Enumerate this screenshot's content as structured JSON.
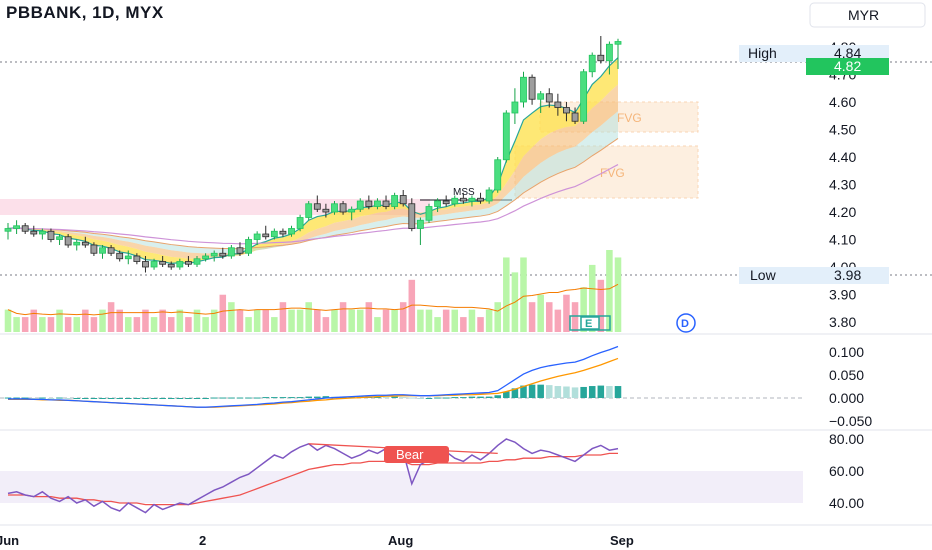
{
  "header": {
    "title": "PBBANK, 1D, MYX",
    "currency": "MYR"
  },
  "colors": {
    "up": "#26a69a",
    "upBright": "#22c55e",
    "down": "#ef5350",
    "black": "#2b2b2b",
    "rsi": "#7e57c2",
    "rsiSignal": "#ef5350",
    "macd": "#2962ff",
    "macdSignal": "#ff9800",
    "pricePill": "#22c55e"
  },
  "price_axis": {
    "labels": [
      "4.80",
      "4.70",
      "4.60",
      "4.50",
      "4.40",
      "4.30",
      "4.20",
      "4.10",
      "4.00",
      "3.90",
      "3.80"
    ],
    "high_label": "High",
    "high_value": "4.84",
    "current_value": "4.82",
    "low_label": "Low",
    "low_value": "3.98"
  },
  "macd_axis": {
    "labels": [
      "0.100",
      "0.050",
      "0.000",
      "−0.050"
    ]
  },
  "rsi_axis": {
    "labels": [
      "80.00",
      "60.00",
      "40.00"
    ]
  },
  "x_axis": {
    "labels": [
      "Jun",
      "2",
      "Aug",
      "Sep"
    ]
  },
  "annotations": {
    "mss": "MSS",
    "fvg1": "FVG",
    "fvg2": "FVG",
    "bear": "Bear",
    "event_e": "E",
    "event_d": "D"
  },
  "chart_data": [
    {
      "type": "candlestick",
      "title": "PBBANK, 1D, MYX",
      "ylim": [
        3.78,
        4.88
      ],
      "x_labels": [
        "Jun",
        "2",
        "Aug",
        "Sep"
      ],
      "ohlc": [
        [
          4.13,
          4.16,
          4.1,
          4.14
        ],
        [
          4.14,
          4.17,
          4.12,
          4.15
        ],
        [
          4.15,
          4.16,
          4.12,
          4.13
        ],
        [
          4.13,
          4.15,
          4.11,
          4.12
        ],
        [
          4.12,
          4.14,
          4.1,
          4.13
        ],
        [
          4.13,
          4.14,
          4.09,
          4.1
        ],
        [
          4.1,
          4.12,
          4.08,
          4.11
        ],
        [
          4.11,
          4.12,
          4.07,
          4.08
        ],
        [
          4.08,
          4.1,
          4.06,
          4.09
        ],
        [
          4.09,
          4.11,
          4.07,
          4.08
        ],
        [
          4.08,
          4.09,
          4.04,
          4.05
        ],
        [
          4.05,
          4.08,
          4.03,
          4.07
        ],
        [
          4.07,
          4.08,
          4.04,
          4.05
        ],
        [
          4.05,
          4.06,
          4.02,
          4.03
        ],
        [
          4.03,
          4.06,
          4.01,
          4.04
        ],
        [
          4.04,
          4.05,
          4.01,
          4.02
        ],
        [
          4.02,
          4.04,
          3.98,
          4.0
        ],
        [
          4.0,
          4.03,
          3.99,
          4.02
        ],
        [
          4.02,
          4.04,
          4.0,
          4.01
        ],
        [
          4.01,
          4.02,
          3.99,
          4.0
        ],
        [
          4.0,
          4.03,
          3.99,
          4.02
        ],
        [
          4.02,
          4.04,
          4.0,
          4.01
        ],
        [
          4.01,
          4.04,
          4.0,
          4.03
        ],
        [
          4.03,
          4.05,
          4.02,
          4.04
        ],
        [
          4.04,
          4.06,
          4.02,
          4.05
        ],
        [
          4.05,
          4.07,
          4.03,
          4.04
        ],
        [
          4.04,
          4.08,
          4.03,
          4.07
        ],
        [
          4.07,
          4.09,
          4.04,
          4.05
        ],
        [
          4.05,
          4.11,
          4.04,
          4.1
        ],
        [
          4.1,
          4.13,
          4.08,
          4.12
        ],
        [
          4.12,
          4.15,
          4.1,
          4.11
        ],
        [
          4.11,
          4.14,
          4.1,
          4.13
        ],
        [
          4.13,
          4.14,
          4.11,
          4.12
        ],
        [
          4.12,
          4.15,
          4.11,
          4.14
        ],
        [
          4.14,
          4.19,
          4.13,
          4.18
        ],
        [
          4.18,
          4.24,
          4.17,
          4.23
        ],
        [
          4.23,
          4.26,
          4.2,
          4.21
        ],
        [
          4.21,
          4.23,
          4.18,
          4.2
        ],
        [
          4.2,
          4.24,
          4.19,
          4.23
        ],
        [
          4.23,
          4.24,
          4.19,
          4.2
        ],
        [
          4.2,
          4.22,
          4.17,
          4.21
        ],
        [
          4.21,
          4.25,
          4.2,
          4.24
        ],
        [
          4.24,
          4.26,
          4.21,
          4.22
        ],
        [
          4.22,
          4.25,
          4.21,
          4.24
        ],
        [
          4.24,
          4.26,
          4.21,
          4.22
        ],
        [
          4.22,
          4.27,
          4.21,
          4.26
        ],
        [
          4.26,
          4.28,
          4.22,
          4.23
        ],
        [
          4.23,
          4.25,
          4.13,
          4.14
        ],
        [
          4.14,
          4.18,
          4.08,
          4.17
        ],
        [
          4.17,
          4.23,
          4.16,
          4.22
        ],
        [
          4.22,
          4.25,
          4.2,
          4.24
        ],
        [
          4.24,
          4.26,
          4.22,
          4.23
        ],
        [
          4.23,
          4.26,
          4.22,
          4.25
        ],
        [
          4.25,
          4.27,
          4.23,
          4.24
        ],
        [
          4.24,
          4.26,
          4.22,
          4.25
        ],
        [
          4.25,
          4.27,
          4.23,
          4.24
        ],
        [
          4.24,
          4.29,
          4.23,
          4.28
        ],
        [
          4.28,
          4.4,
          4.27,
          4.39
        ],
        [
          4.39,
          4.57,
          4.38,
          4.56
        ],
        [
          4.56,
          4.65,
          4.52,
          4.6
        ],
        [
          4.6,
          4.71,
          4.58,
          4.69
        ],
        [
          4.69,
          4.7,
          4.59,
          4.61
        ],
        [
          4.61,
          4.64,
          4.56,
          4.63
        ],
        [
          4.63,
          4.65,
          4.58,
          4.6
        ],
        [
          4.6,
          4.63,
          4.55,
          4.58
        ],
        [
          4.58,
          4.6,
          4.53,
          4.56
        ],
        [
          4.56,
          4.58,
          4.52,
          4.53
        ],
        [
          4.53,
          4.72,
          4.52,
          4.71
        ],
        [
          4.71,
          4.78,
          4.69,
          4.77
        ],
        [
          4.77,
          4.84,
          4.74,
          4.75
        ],
        [
          4.75,
          4.82,
          4.7,
          4.81
        ],
        [
          4.81,
          4.83,
          4.72,
          4.82
        ]
      ],
      "volume": [
        3,
        2,
        2,
        3,
        2,
        2,
        3,
        2,
        2,
        3,
        2,
        3,
        4,
        3,
        2,
        2,
        3,
        2,
        3,
        2,
        3,
        2,
        3,
        2,
        3,
        5,
        4,
        3,
        2,
        3,
        3,
        2,
        4,
        3,
        3,
        4,
        3,
        2,
        3,
        4,
        3,
        3,
        4,
        2,
        3,
        3,
        4,
        7,
        3,
        3,
        2,
        3,
        3,
        2,
        3,
        2,
        3,
        4,
        10,
        8,
        10,
        4,
        5,
        4,
        3,
        5,
        4,
        6,
        9,
        7,
        11,
        10
      ]
    },
    {
      "type": "line",
      "title": "",
      "ylim": [
        -0.055,
        0.12
      ],
      "series": [
        {
          "values": [
            -0.002,
            -0.002,
            -0.002,
            -0.003,
            -0.003,
            -0.004,
            -0.004,
            -0.005,
            -0.006,
            -0.007,
            -0.008,
            -0.009,
            -0.01,
            -0.011,
            -0.012,
            -0.013,
            -0.014,
            -0.015,
            -0.016,
            -0.017,
            -0.018,
            -0.019,
            -0.02,
            -0.02,
            -0.019,
            -0.018,
            -0.017,
            -0.016,
            -0.015,
            -0.014,
            -0.012,
            -0.011,
            -0.009,
            -0.008,
            -0.006,
            -0.004,
            -0.002,
            0.0,
            0.001,
            0.002,
            0.003,
            0.004,
            0.005,
            0.006,
            0.006,
            0.007,
            0.007,
            0.006,
            0.005,
            0.005,
            0.006,
            0.007,
            0.008,
            0.009,
            0.01,
            0.011,
            0.012,
            0.016,
            0.028,
            0.04,
            0.052,
            0.06,
            0.066,
            0.07,
            0.073,
            0.076,
            0.078,
            0.084,
            0.092,
            0.099,
            0.105,
            0.112
          ]
        },
        {
          "values": [
            -0.003,
            -0.003,
            -0.003,
            -0.003,
            -0.004,
            -0.004,
            -0.005,
            -0.005,
            -0.006,
            -0.007,
            -0.008,
            -0.009,
            -0.01,
            -0.011,
            -0.012,
            -0.013,
            -0.014,
            -0.015,
            -0.016,
            -0.017,
            -0.018,
            -0.019,
            -0.02,
            -0.02,
            -0.02,
            -0.019,
            -0.018,
            -0.017,
            -0.016,
            -0.015,
            -0.014,
            -0.013,
            -0.011,
            -0.01,
            -0.008,
            -0.007,
            -0.005,
            -0.004,
            -0.002,
            -0.001,
            0.0,
            0.001,
            0.002,
            0.003,
            0.004,
            0.004,
            0.005,
            0.005,
            0.005,
            0.005,
            0.005,
            0.006,
            0.006,
            0.007,
            0.007,
            0.008,
            0.009,
            0.01,
            0.014,
            0.019,
            0.025,
            0.031,
            0.037,
            0.042,
            0.047,
            0.051,
            0.055,
            0.06,
            0.066,
            0.072,
            0.079,
            0.086
          ]
        }
      ],
      "histogram": [
        0.001,
        0.001,
        0.001,
        0.0,
        0.001,
        0.0,
        0.001,
        0.0,
        0.0,
        0.0,
        0.0,
        0.0,
        0.0,
        0.0,
        0.0,
        0.0,
        0.0,
        0.0,
        0.0,
        0.0,
        0.0,
        0.0,
        0.0,
        0.0,
        0.001,
        0.001,
        0.001,
        0.001,
        0.001,
        0.001,
        0.002,
        0.002,
        0.002,
        0.002,
        0.002,
        0.003,
        0.003,
        0.004,
        0.003,
        0.003,
        0.003,
        0.003,
        0.003,
        0.003,
        0.002,
        0.003,
        0.002,
        0.001,
        0.0,
        0.0,
        0.001,
        0.001,
        0.002,
        0.002,
        0.003,
        0.003,
        0.003,
        0.006,
        0.014,
        0.021,
        0.027,
        0.029,
        0.029,
        0.028,
        0.026,
        0.025,
        0.023,
        0.024,
        0.026,
        0.027,
        0.026,
        0.026
      ]
    },
    {
      "type": "line",
      "title": "",
      "ylim": [
        35,
        85
      ],
      "bands": [
        40,
        60
      ],
      "series": [
        {
          "values": [
            46,
            47,
            45,
            44,
            47,
            43,
            41,
            44,
            40,
            42,
            38,
            41,
            37,
            35,
            40,
            37,
            34,
            39,
            36,
            38,
            40,
            39,
            42,
            45,
            48,
            50,
            53,
            56,
            58,
            62,
            66,
            70,
            68,
            72,
            75,
            77,
            73,
            76,
            74,
            71,
            68,
            70,
            73,
            71,
            74,
            69,
            72,
            52,
            64,
            67,
            70,
            72,
            68,
            66,
            70,
            67,
            71,
            76,
            80,
            78,
            74,
            71,
            73,
            72,
            70,
            68,
            66,
            70,
            74,
            76,
            73,
            74
          ]
        },
        {
          "values": [
            45,
            45,
            45,
            44,
            44,
            44,
            43,
            43,
            43,
            42,
            42,
            41,
            41,
            40,
            40,
            40,
            39,
            39,
            39,
            39,
            39,
            39,
            40,
            41,
            42,
            43,
            44,
            45,
            47,
            49,
            51,
            53,
            55,
            57,
            59,
            61,
            62,
            63,
            64,
            64,
            65,
            65,
            66,
            66,
            66,
            66,
            66,
            64,
            64,
            64,
            65,
            65,
            65,
            65,
            65,
            65,
            66,
            66,
            67,
            67,
            68,
            68,
            68,
            69,
            69,
            69,
            69,
            70,
            70,
            70,
            71,
            71
          ]
        }
      ]
    }
  ]
}
